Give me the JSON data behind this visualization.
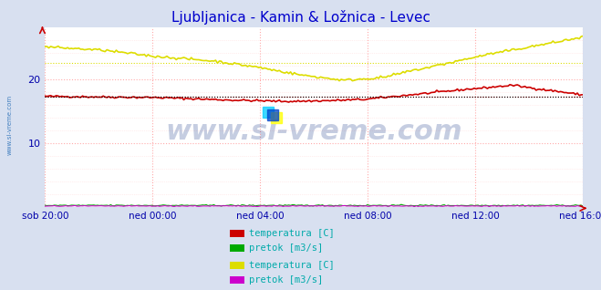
{
  "title": "Ljubljanica - Kamin & Ložnica - Levec",
  "title_color": "#0000cc",
  "background_color": "#d8e0f0",
  "plot_bg_color": "#ffffff",
  "grid_color_major": "#ffaaaa",
  "grid_color_minor": "#ffdddd",
  "ylim": [
    0,
    28
  ],
  "xlabel_color": "#0000aa",
  "xtick_labels": [
    "sob 20:00",
    "ned 00:00",
    "ned 04:00",
    "ned 08:00",
    "ned 12:00",
    "ned 16:00"
  ],
  "n_points": 288,
  "watermark_text": "www.si-vreme.com",
  "watermark_color": "#1a3a8a",
  "watermark_alpha": 0.25,
  "station1_temp_color": "#cc0000",
  "station1_flow_color": "#00aa00",
  "station2_temp_color": "#dddd00",
  "station2_flow_color": "#cc00cc",
  "legend_text_color": "#00aaaa",
  "legend_items": [
    {
      "label": "temperatura [C]",
      "color": "#cc0000"
    },
    {
      "label": "pretok [m3/s]",
      "color": "#00aa00"
    },
    {
      "label": "temperatura [C]",
      "color": "#dddd00"
    },
    {
      "label": "pretok [m3/s]",
      "color": "#cc00cc"
    }
  ]
}
